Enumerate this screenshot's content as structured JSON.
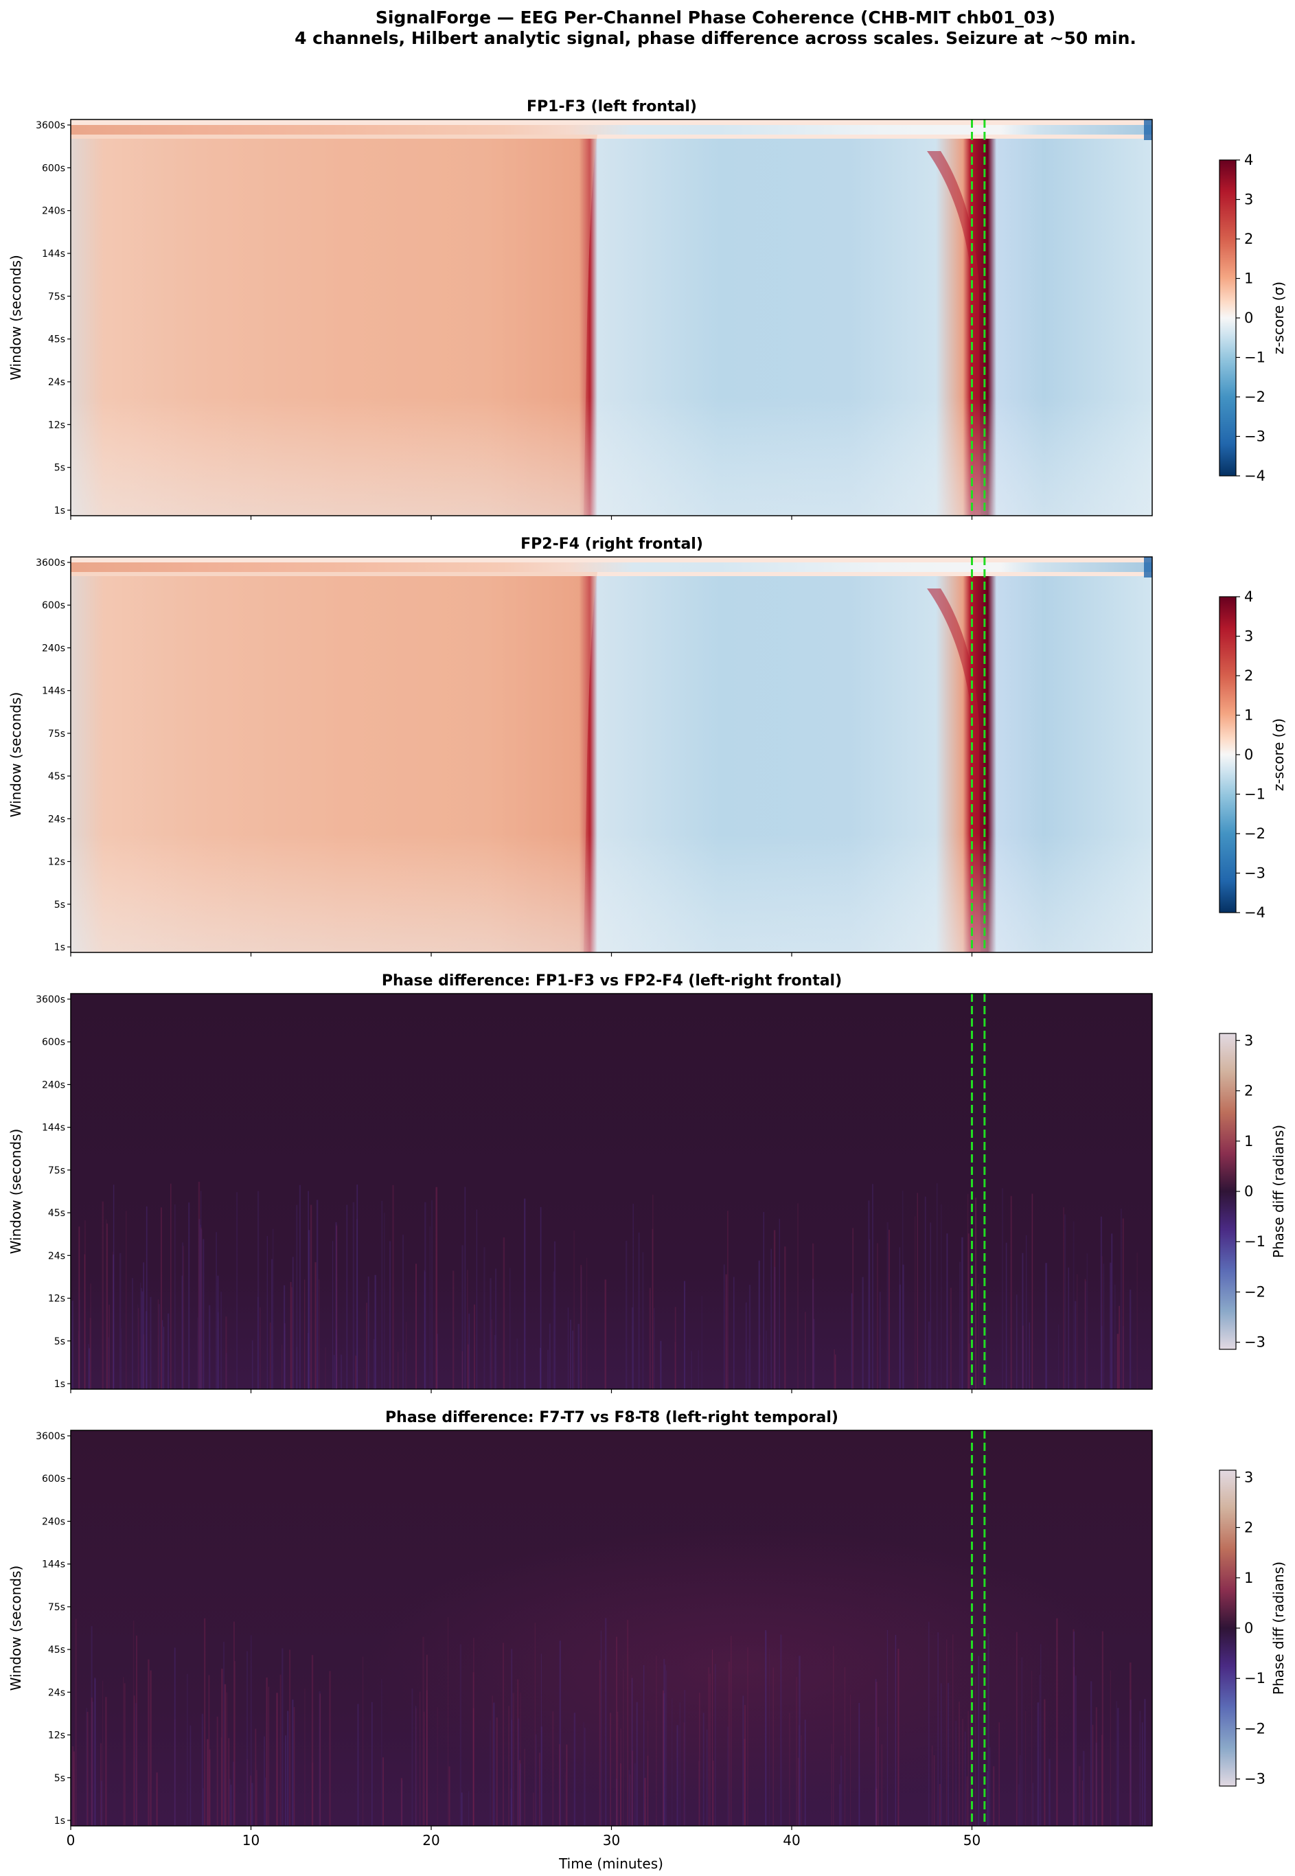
{
  "figure": {
    "title_line1": "SignalForge — EEG Per-Channel Phase Coherence (CHB-MIT chb01_03)",
    "title_line2": "4 channels, Hilbert analytic signal, phase difference across scales. Seizure at ~50 min."
  },
  "chart_data": [
    {
      "type": "heatmap",
      "title": "FP1-F3 (left frontal)",
      "ylabel": "Window (seconds)",
      "y_ticks": [
        "1s",
        "5s",
        "12s",
        "24s",
        "45s",
        "75s",
        "144s",
        "240s",
        "600s",
        "3600s"
      ],
      "xlim": [
        0,
        60
      ],
      "x_ticks": [
        0,
        10,
        20,
        30,
        40,
        50
      ],
      "colorbar": {
        "label": "z-score (σ)",
        "colormap": "RdBu_r",
        "min": -4,
        "max": 4,
        "ticks": [
          "4",
          "3",
          "2",
          "1",
          "0",
          "−1",
          "−2",
          "−3",
          "−4"
        ]
      },
      "markers": [
        50.0,
        50.7
      ],
      "marker_color": "#22dd22",
      "pattern": "positive z-score band (red) from 0 to ~29 min spreading to long windows, negative (blue) 29–49 min, sharp maximum near 50 min at short windows"
    },
    {
      "type": "heatmap",
      "title": "FP2-F4 (right frontal)",
      "ylabel": "Window (seconds)",
      "y_ticks": [
        "1s",
        "5s",
        "12s",
        "24s",
        "45s",
        "75s",
        "144s",
        "240s",
        "600s",
        "3600s"
      ],
      "xlim": [
        0,
        60
      ],
      "x_ticks": [
        0,
        10,
        20,
        30,
        40,
        50
      ],
      "colorbar": {
        "label": "z-score (σ)",
        "colormap": "RdBu_r",
        "min": -4,
        "max": 4,
        "ticks": [
          "4",
          "3",
          "2",
          "1",
          "0",
          "−1",
          "−2",
          "−3",
          "−4"
        ]
      },
      "markers": [
        50.0,
        50.7
      ],
      "marker_color": "#22dd22"
    },
    {
      "type": "heatmap",
      "title": "Phase difference: FP1-F3 vs FP2-F4 (left-right frontal)",
      "ylabel": "Window (seconds)",
      "y_ticks": [
        "1s",
        "5s",
        "12s",
        "24s",
        "45s",
        "75s",
        "144s",
        "240s",
        "600s",
        "3600s"
      ],
      "xlim": [
        0,
        60
      ],
      "x_ticks": [
        0,
        10,
        20,
        30,
        40,
        50
      ],
      "colorbar": {
        "label": "Phase diff (radians)",
        "colormap": "twilight",
        "min": -3.14,
        "max": 3.14,
        "ticks": [
          "3",
          "2",
          "1",
          "0",
          "−1",
          "−2",
          "−3"
        ]
      },
      "markers": [
        50.0,
        50.7
      ],
      "marker_color": "#22dd22",
      "pattern": "near-zero phase difference everywhere"
    },
    {
      "type": "heatmap",
      "title": "Phase difference: F7-T7 vs F8-T8 (left-right temporal)",
      "ylabel": "Window (seconds)",
      "xlabel": "Time (minutes)",
      "y_ticks": [
        "1s",
        "5s",
        "12s",
        "24s",
        "45s",
        "75s",
        "144s",
        "240s",
        "600s",
        "3600s"
      ],
      "xlim": [
        0,
        60
      ],
      "x_ticks": [
        "0",
        "10",
        "20",
        "30",
        "40",
        "50"
      ],
      "colorbar": {
        "label": "Phase diff (radians)",
        "colormap": "twilight",
        "min": -3.14,
        "max": 3.14,
        "ticks": [
          "3",
          "2",
          "1",
          "0",
          "−1",
          "−2",
          "−3"
        ]
      },
      "markers": [
        50.0,
        50.7
      ],
      "marker_color": "#22dd22",
      "pattern": "near-zero phase difference, slightly positive 30–45 min"
    }
  ]
}
